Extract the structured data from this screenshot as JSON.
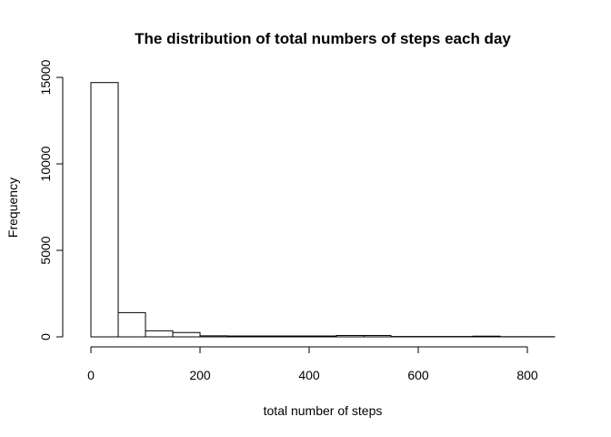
{
  "chart_data": {
    "type": "bar",
    "subtype": "histogram",
    "title": "The distribution of total numbers of steps each day",
    "xlabel": "total number of steps",
    "ylabel": "Frequency",
    "xlim": [
      0,
      850
    ],
    "ylim": [
      0,
      15000
    ],
    "x_ticks": [
      0,
      200,
      400,
      600,
      800
    ],
    "y_ticks": [
      0,
      5000,
      10000,
      15000
    ],
    "bin_edges": [
      0,
      50,
      100,
      150,
      200,
      250,
      300,
      350,
      400,
      450,
      500,
      550,
      600,
      650,
      700,
      750,
      800,
      850
    ],
    "values": [
      14700,
      1400,
      350,
      250,
      60,
      50,
      50,
      50,
      50,
      80,
      80,
      20,
      20,
      20,
      40,
      10,
      10
    ],
    "bar_fill": "#ffffff",
    "bar_stroke": "#000000",
    "grid": false
  }
}
